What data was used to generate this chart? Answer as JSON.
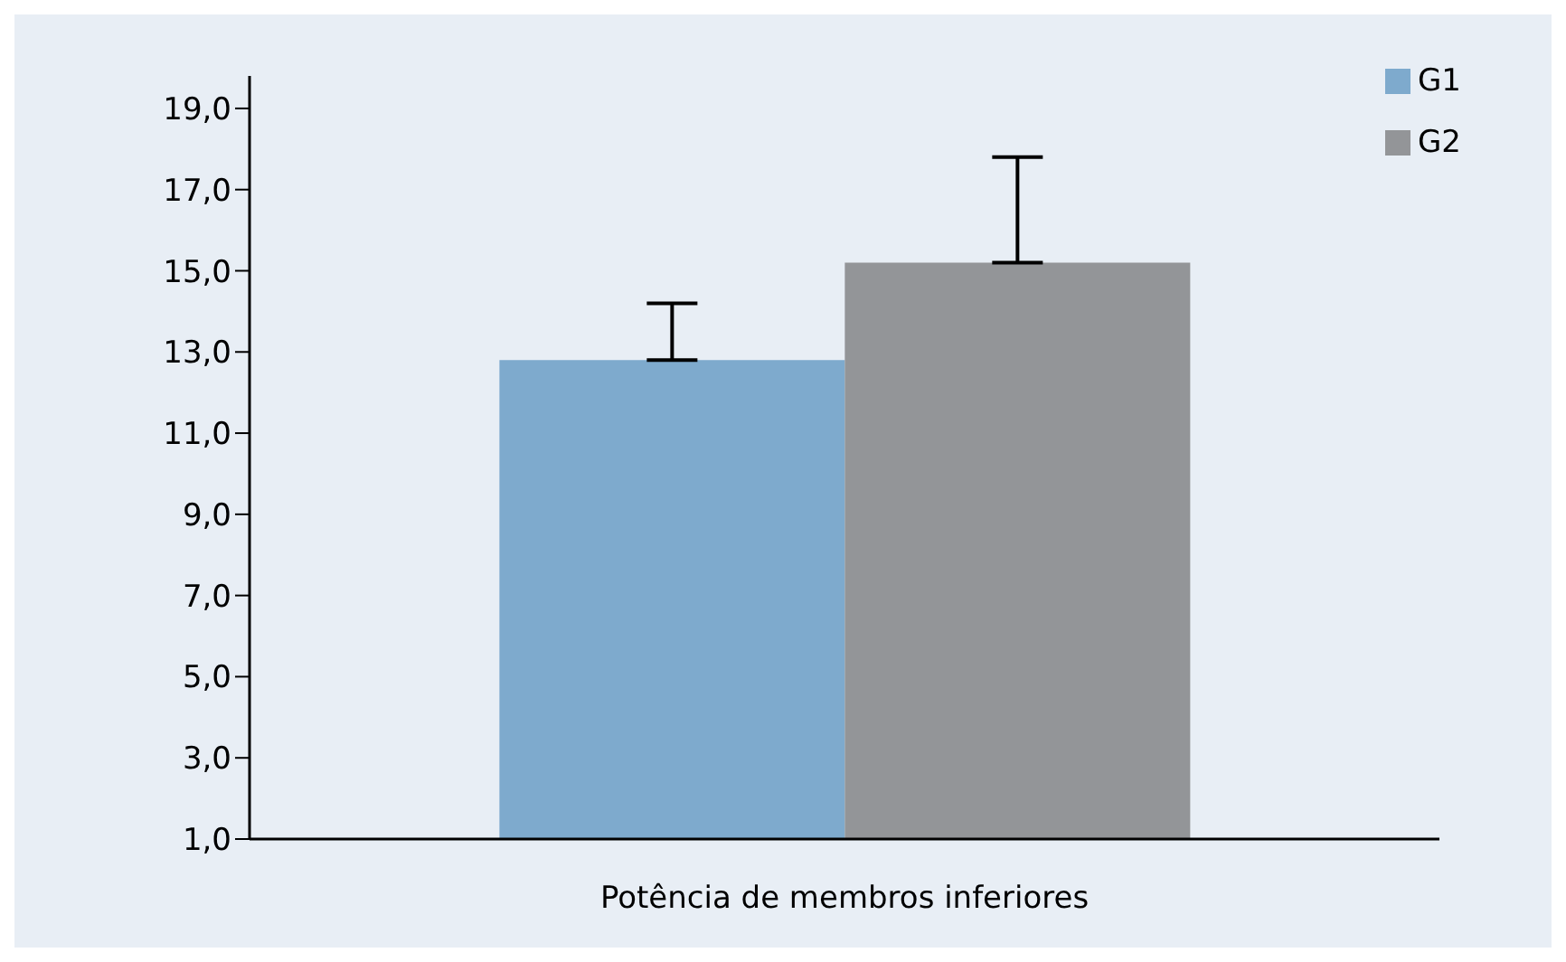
{
  "chart_data": {
    "type": "bar",
    "categories": [
      "Potência de membros inferiores"
    ],
    "series": [
      {
        "name": "G1",
        "color": "#7eaacd",
        "values": [
          12.8
        ],
        "errors": [
          [
            12.8,
            14.2
          ]
        ]
      },
      {
        "name": "G2",
        "color": "#939598",
        "values": [
          15.2
        ],
        "errors": [
          [
            15.2,
            17.8
          ]
        ]
      }
    ],
    "ylim": [
      1,
      19.8
    ],
    "yticks": [
      {
        "value": 1,
        "label": "1,0"
      },
      {
        "value": 3,
        "label": "3,0"
      },
      {
        "value": 5,
        "label": "5,0"
      },
      {
        "value": 7,
        "label": "7,0"
      },
      {
        "value": 9,
        "label": "9,0"
      },
      {
        "value": 11,
        "label": "11,0"
      },
      {
        "value": 13,
        "label": "13,0"
      },
      {
        "value": 15,
        "label": "15,0"
      },
      {
        "value": 17,
        "label": "17,0"
      },
      {
        "value": 19,
        "label": "19,0"
      }
    ],
    "grid": false,
    "legend": "top right"
  }
}
